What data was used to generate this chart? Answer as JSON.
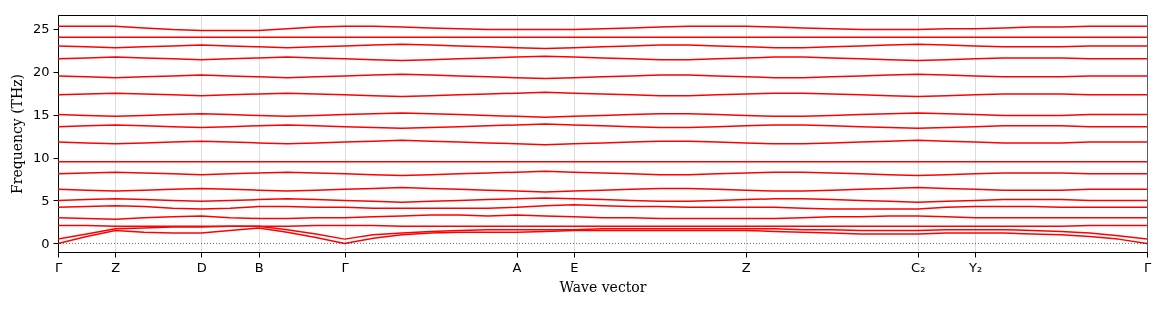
{
  "chart_data": {
    "type": "line",
    "xlabel": "Wave vector",
    "ylabel": "Frequency (THz)",
    "categories": [
      "Γ",
      null,
      "Z",
      null,
      null,
      "D",
      null,
      "B",
      null,
      null,
      "Γ",
      null,
      null,
      null,
      null,
      null,
      "A",
      null,
      "E",
      null,
      null,
      null,
      null,
      null,
      "Z",
      null,
      null,
      null,
      null,
      null,
      "C₂",
      null,
      "Y₂",
      null,
      null,
      null,
      null,
      null,
      "Γ"
    ],
    "ylim": [
      -1,
      26.6
    ],
    "yticks": [
      0,
      5,
      10,
      15,
      20,
      25
    ],
    "grid": "x",
    "ref_lines": [
      {
        "axis": "y",
        "value": 0,
        "color": "#000000",
        "line_style": "dotted"
      }
    ],
    "series": [
      {
        "color": "#ff0000",
        "values": [
          0,
          0.8,
          1.5,
          1.3,
          1.2,
          1.2,
          1.5,
          1.8,
          1.3,
          0.7,
          0,
          0.6,
          1.0,
          1.2,
          1.3,
          1.3,
          1.3,
          1.4,
          1.5,
          1.5,
          1.5,
          1.5,
          1.5,
          1.5,
          1.5,
          1.4,
          1.3,
          1.2,
          1.1,
          1.1,
          1.1,
          1.2,
          1.2,
          1.2,
          1.1,
          1.0,
          0.8,
          0.5,
          0
        ]
      },
      {
        "color": "#ff0000",
        "values": [
          0.5,
          1.1,
          1.7,
          1.8,
          1.9,
          1.9,
          2.0,
          2.0,
          1.6,
          1.1,
          0.5,
          1.0,
          1.2,
          1.4,
          1.5,
          1.6,
          1.6,
          1.6,
          1.6,
          1.7,
          1.7,
          1.7,
          1.7,
          1.7,
          1.7,
          1.7,
          1.6,
          1.6,
          1.5,
          1.5,
          1.5,
          1.6,
          1.6,
          1.6,
          1.5,
          1.4,
          1.2,
          0.9,
          0.5
        ]
      },
      {
        "color": "#ff0000",
        "values": [
          2.1,
          2.1,
          2.0,
          2.0,
          2.0,
          2.0,
          2.0,
          2.0,
          2.0,
          2.1,
          2.1,
          2.1,
          2.0,
          2.0,
          2.0,
          2.0,
          2.0,
          2.0,
          2.0,
          2.0,
          2.0,
          2.0,
          2.0,
          2.0,
          2.0,
          2.0,
          2.0,
          2.0,
          2.0,
          2.0,
          2.0,
          2.0,
          2.0,
          2.0,
          2.0,
          2.0,
          2.1,
          2.1,
          2.1
        ]
      },
      {
        "color": "#ff0000",
        "values": [
          3.0,
          2.9,
          2.8,
          3.0,
          3.1,
          3.2,
          3.0,
          2.9,
          2.9,
          3.0,
          3.0,
          3.1,
          3.2,
          3.3,
          3.3,
          3.2,
          3.3,
          3.2,
          3.1,
          3.0,
          3.0,
          2.9,
          2.9,
          2.9,
          2.9,
          2.9,
          3.0,
          3.1,
          3.1,
          3.2,
          3.2,
          3.1,
          3.0,
          3.0,
          3.0,
          3.0,
          3.0,
          3.0,
          3.0
        ]
      },
      {
        "color": "#ff0000",
        "values": [
          4.2,
          4.3,
          4.4,
          4.3,
          4.1,
          4.0,
          4.1,
          4.3,
          4.3,
          4.2,
          4.2,
          4.1,
          4.1,
          4.1,
          4.1,
          4.1,
          4.2,
          4.4,
          4.5,
          4.4,
          4.3,
          4.3,
          4.2,
          4.2,
          4.2,
          4.2,
          4.1,
          4.0,
          4.0,
          4.0,
          4.0,
          4.2,
          4.3,
          4.3,
          4.3,
          4.2,
          4.2,
          4.2,
          4.2
        ]
      },
      {
        "color": "#ff0000",
        "values": [
          5.0,
          5.1,
          5.2,
          5.1,
          5.0,
          4.9,
          5.0,
          5.1,
          5.2,
          5.1,
          5.0,
          4.9,
          4.8,
          4.9,
          5.0,
          5.1,
          5.2,
          5.3,
          5.2,
          5.1,
          5.0,
          4.9,
          4.9,
          5.0,
          5.1,
          5.2,
          5.2,
          5.1,
          5.0,
          4.9,
          4.8,
          4.9,
          5.0,
          5.1,
          5.1,
          5.1,
          5.0,
          5.0,
          5.0
        ]
      },
      {
        "color": "#ff0000",
        "values": [
          6.3,
          6.2,
          6.1,
          6.2,
          6.3,
          6.4,
          6.3,
          6.2,
          6.1,
          6.2,
          6.3,
          6.4,
          6.5,
          6.4,
          6.3,
          6.2,
          6.1,
          6.0,
          6.1,
          6.2,
          6.3,
          6.4,
          6.4,
          6.3,
          6.2,
          6.1,
          6.1,
          6.2,
          6.3,
          6.4,
          6.5,
          6.4,
          6.3,
          6.2,
          6.2,
          6.2,
          6.3,
          6.3,
          6.3
        ]
      },
      {
        "color": "#ff0000",
        "values": [
          8.1,
          8.2,
          8.3,
          8.2,
          8.1,
          8.0,
          8.1,
          8.2,
          8.3,
          8.2,
          8.1,
          8.0,
          7.9,
          8.0,
          8.1,
          8.2,
          8.3,
          8.4,
          8.3,
          8.2,
          8.1,
          8.0,
          8.0,
          8.1,
          8.2,
          8.3,
          8.3,
          8.2,
          8.1,
          8.0,
          7.9,
          8.0,
          8.1,
          8.2,
          8.2,
          8.2,
          8.1,
          8.1,
          8.1
        ]
      },
      {
        "color": "#ff0000",
        "values": [
          9.5,
          9.5,
          9.5,
          9.5,
          9.5,
          9.5,
          9.5,
          9.5,
          9.5,
          9.5,
          9.5,
          9.5,
          9.5,
          9.5,
          9.5,
          9.5,
          9.5,
          9.5,
          9.5,
          9.5,
          9.5,
          9.5,
          9.5,
          9.5,
          9.5,
          9.5,
          9.5,
          9.5,
          9.5,
          9.5,
          9.5,
          9.5,
          9.5,
          9.5,
          9.5,
          9.5,
          9.5,
          9.5,
          9.5
        ]
      },
      {
        "color": "#ff0000",
        "values": [
          11.8,
          11.7,
          11.6,
          11.7,
          11.8,
          11.9,
          11.8,
          11.7,
          11.6,
          11.7,
          11.8,
          11.9,
          12.0,
          11.9,
          11.8,
          11.7,
          11.6,
          11.5,
          11.6,
          11.7,
          11.8,
          11.9,
          11.9,
          11.8,
          11.7,
          11.6,
          11.6,
          11.7,
          11.8,
          11.9,
          12.0,
          11.9,
          11.8,
          11.7,
          11.7,
          11.7,
          11.8,
          11.8,
          11.8
        ]
      },
      {
        "color": "#ff0000",
        "values": [
          13.6,
          13.7,
          13.8,
          13.7,
          13.6,
          13.5,
          13.6,
          13.7,
          13.8,
          13.7,
          13.6,
          13.5,
          13.4,
          13.5,
          13.6,
          13.7,
          13.8,
          13.9,
          13.8,
          13.7,
          13.6,
          13.5,
          13.5,
          13.6,
          13.7,
          13.8,
          13.8,
          13.7,
          13.6,
          13.5,
          13.4,
          13.5,
          13.6,
          13.7,
          13.7,
          13.7,
          13.6,
          13.6,
          13.6
        ]
      },
      {
        "color": "#ff0000",
        "values": [
          15.0,
          14.9,
          14.8,
          14.9,
          15.0,
          15.1,
          15.0,
          14.9,
          14.8,
          14.9,
          15.0,
          15.1,
          15.2,
          15.1,
          15.0,
          14.9,
          14.8,
          14.7,
          14.8,
          14.9,
          15.0,
          15.1,
          15.1,
          15.0,
          14.9,
          14.8,
          14.8,
          14.9,
          15.0,
          15.1,
          15.2,
          15.1,
          15.0,
          14.9,
          14.9,
          14.9,
          15.0,
          15.0,
          15.0
        ]
      },
      {
        "color": "#ff0000",
        "values": [
          17.3,
          17.4,
          17.5,
          17.4,
          17.3,
          17.2,
          17.3,
          17.4,
          17.5,
          17.4,
          17.3,
          17.2,
          17.1,
          17.2,
          17.3,
          17.4,
          17.5,
          17.6,
          17.5,
          17.4,
          17.3,
          17.2,
          17.2,
          17.3,
          17.4,
          17.5,
          17.5,
          17.4,
          17.3,
          17.2,
          17.1,
          17.2,
          17.3,
          17.4,
          17.4,
          17.4,
          17.3,
          17.3,
          17.3
        ]
      },
      {
        "color": "#ff0000",
        "values": [
          19.5,
          19.4,
          19.3,
          19.4,
          19.5,
          19.6,
          19.5,
          19.4,
          19.3,
          19.4,
          19.5,
          19.6,
          19.7,
          19.6,
          19.5,
          19.4,
          19.3,
          19.2,
          19.3,
          19.4,
          19.5,
          19.6,
          19.6,
          19.5,
          19.4,
          19.3,
          19.3,
          19.4,
          19.5,
          19.6,
          19.7,
          19.6,
          19.5,
          19.4,
          19.4,
          19.4,
          19.5,
          19.5,
          19.5
        ]
      },
      {
        "color": "#ff0000",
        "values": [
          21.5,
          21.6,
          21.7,
          21.6,
          21.5,
          21.4,
          21.5,
          21.6,
          21.7,
          21.6,
          21.5,
          21.4,
          21.3,
          21.4,
          21.5,
          21.6,
          21.7,
          21.8,
          21.7,
          21.6,
          21.5,
          21.4,
          21.4,
          21.5,
          21.6,
          21.7,
          21.7,
          21.6,
          21.5,
          21.4,
          21.3,
          21.4,
          21.5,
          21.6,
          21.6,
          21.6,
          21.5,
          21.5,
          21.5
        ]
      },
      {
        "color": "#ff0000",
        "values": [
          23.0,
          22.9,
          22.8,
          22.9,
          23.0,
          23.1,
          23.0,
          22.9,
          22.8,
          22.9,
          23.0,
          23.1,
          23.2,
          23.1,
          23.0,
          22.9,
          22.8,
          22.7,
          22.8,
          22.9,
          23.0,
          23.1,
          23.1,
          23.0,
          22.9,
          22.8,
          22.8,
          22.9,
          23.0,
          23.1,
          23.2,
          23.1,
          23.0,
          22.9,
          22.9,
          22.9,
          23.0,
          23.0,
          23.0
        ]
      },
      {
        "color": "#ff0000",
        "values": [
          24.0,
          24.0,
          24.0,
          24.0,
          24.0,
          24.0,
          24.0,
          24.0,
          24.0,
          24.0,
          24.0,
          24.0,
          24.0,
          24.0,
          24.0,
          24.0,
          24.0,
          24.0,
          24.0,
          24.0,
          24.0,
          24.0,
          24.0,
          24.0,
          24.0,
          24.0,
          24.0,
          24.0,
          24.0,
          24.0,
          24.0,
          24.0,
          24.0,
          24.0,
          24.0,
          24.0,
          24.0,
          24.0,
          24.0
        ]
      },
      {
        "color": "#ff0000",
        "values": [
          25.3,
          25.3,
          25.3,
          25.1,
          24.9,
          24.8,
          24.8,
          24.8,
          25.0,
          25.2,
          25.3,
          25.3,
          25.2,
          25.1,
          25.0,
          24.9,
          24.9,
          24.9,
          24.9,
          25.0,
          25.1,
          25.2,
          25.3,
          25.3,
          25.3,
          25.2,
          25.1,
          25.0,
          24.9,
          24.9,
          24.9,
          25.0,
          25.0,
          25.1,
          25.2,
          25.2,
          25.3,
          25.3,
          25.3
        ]
      }
    ]
  }
}
